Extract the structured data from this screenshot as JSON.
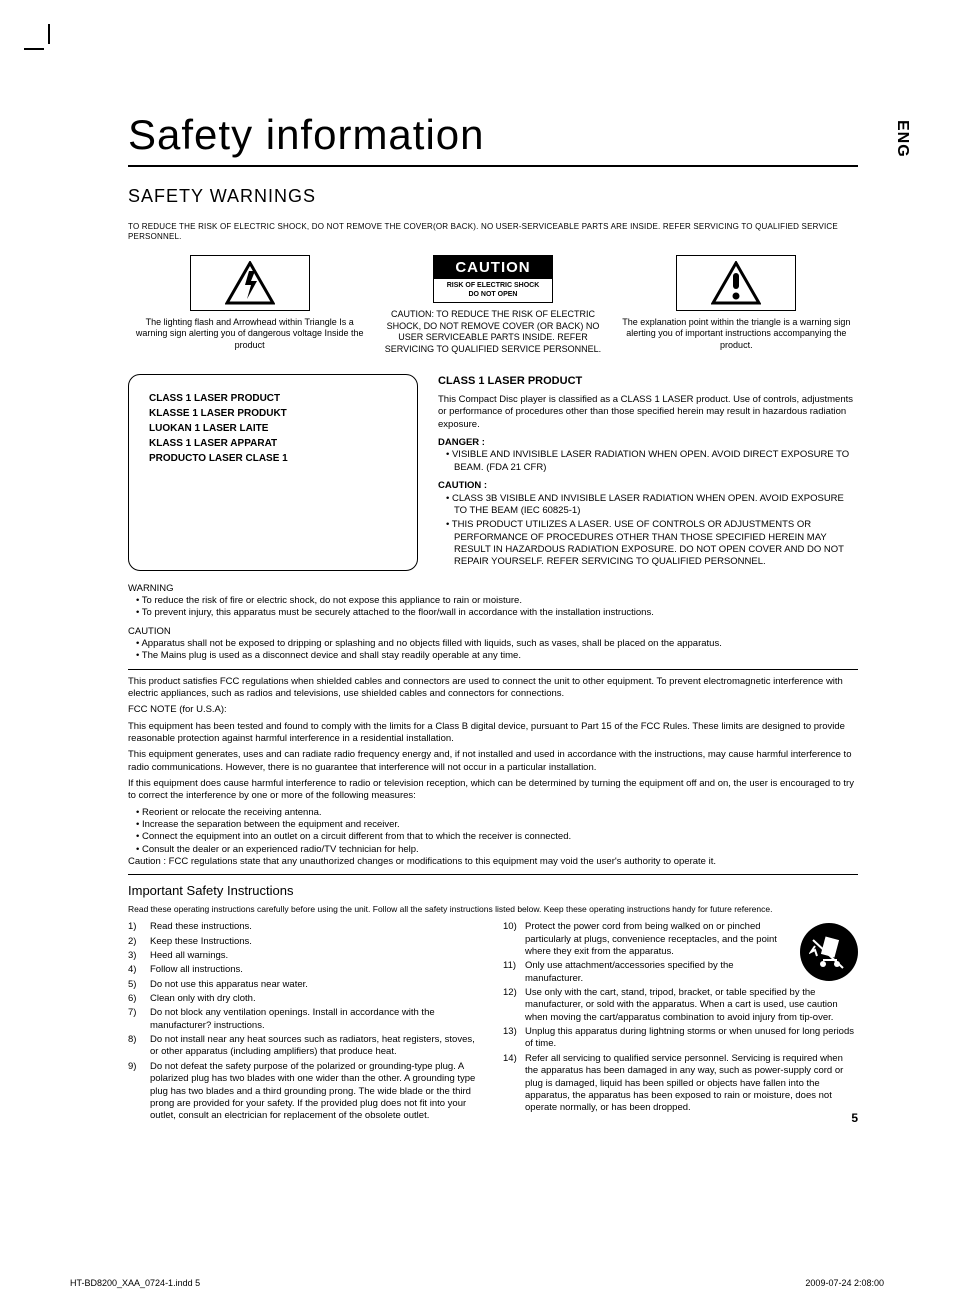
{
  "side_label": "ENG",
  "title": "Safety information",
  "heading": "SAFETY WARNINGS",
  "intro": "TO REDUCE THE RISK OF ELECTRIC SHOCK, DO NOT REMOVE THE COVER(OR BACK). NO USER-SERVICEABLE PARTS ARE INSIDE. REFER SERVICING TO QUALIFIED SERVICE PERSONNEL.",
  "caution_box": {
    "header": "CAUTION",
    "sub1": "RISK OF ELECTRIC SHOCK",
    "sub2": "DO NOT OPEN"
  },
  "col1_text": "The lighting flash and Arrowhead within Triangle Is a warning sign alerting you of dangerous voltage Inside the product",
  "col2_text": "CAUTION: TO REDUCE THE RISK OF ELECTRIC SHOCK, DO NOT REMOVE COVER (OR BACK) NO USER SERVICEABLE PARTS INSIDE. REFER SERVICING TO QUALIFIED SERVICE PERSONNEL.",
  "col3_text": "The explanation point within the triangle is a warning sign alerting you of important instructions accompanying the product.",
  "laser_box": [
    "CLASS 1 LASER PRODUCT",
    "KLASSE 1 LASER PRODUKT",
    "LUOKAN 1 LASER LAITE",
    "KLASS 1 LASER APPARAT",
    "PRODUCTO LASER CLASE 1"
  ],
  "laser_right": {
    "title": "CLASS 1 LASER PRODUCT",
    "desc": "This Compact Disc player is classified as a CLASS 1 LASER product. Use of controls, adjustments or performance of procedures other than those specified herein may result in hazardous radiation exposure.",
    "danger_label": "DANGER :",
    "danger_items": [
      "VISIBLE AND INVISIBLE LASER RADIATION WHEN OPEN. AVOID DIRECT EXPOSURE TO BEAM.    (FDA 21 CFR)"
    ],
    "caution_label": "CAUTION :",
    "caution_items": [
      "CLASS 3B VISIBLE AND INVISIBLE LASER RADIATION WHEN OPEN. AVOID EXPOSURE TO THE BEAM    (IEC 60825-1)",
      "THIS PRODUCT UTILIZES A LASER. USE OF CONTROLS OR ADJUSTMENTS OR PERFORMANCE OF PROCEDURES OTHER THAN THOSE SPECIFIED HEREIN MAY RESULT IN HAZARDOUS RADIATION EXPOSURE. DO NOT OPEN COVER AND DO NOT REPAIR YOURSELF. REFER SERVICING TO QUALIFIED PERSONNEL."
    ]
  },
  "warning_label": "WARNING",
  "warning_items": [
    "To reduce the risk of fire or electric shock, do not expose this appliance to rain or moisture.",
    "To prevent injury, this apparatus must be securely attached to the floor/wall in accordance with the  installation instructions."
  ],
  "caution_label2": "CAUTION",
  "caution_items2": [
    "Apparatus shall not be exposed to dripping or splashing and no objects filled with liquids, such as vases, shall be placed on the apparatus.",
    "The Mains plug is used as a disconnect device and shall stay readily operable at any time."
  ],
  "fcc_para1": "This product satisfies FCC regulations when shielded cables and connectors are used to connect the unit to other equipment. To prevent electromagnetic interference with electric appliances, such as radios and televisions, use shielded cables and connectors for connections.",
  "fcc_note_label": "FCC NOTE (for U.S.A):",
  "fcc_para2": "This equipment has been tested and found to comply with the limits for a Class B digital device, pursuant to Part 15 of the FCC Rules. These limits are designed to provide reasonable protection against harmful interference in a residential installation.",
  "fcc_para3": "This equipment generates, uses and can radiate radio frequency energy and, if not installed and used in accordance with the instructions, may cause harmful interference to radio communications. However, there is no guarantee that interference will not occur in a particular installation.",
  "fcc_para4": "If this equipment does cause harmful interference to radio or television reception, which can be determined by turning the equipment off and on, the user is encouraged to try to correct the interference by one or more of the following measures:",
  "fcc_bullets": [
    "Reorient or relocate the receiving antenna.",
    "Increase the separation between the equipment and receiver.",
    "Connect the equipment into an outlet on a circuit different from that to which the receiver is connected.",
    "Consult the dealer or an experienced radio/TV technician for help."
  ],
  "fcc_caution": "Caution : FCC regulations state that any unauthorized changes or modifications to this equipment may void the user's authority to operate it.",
  "safety_heading": "Important Safety Instructions",
  "safety_intro": "Read these operating instructions carefully before using the unit. Follow all the safety instructions listed below. Keep these operating instructions handy for future reference.",
  "instructions_left": [
    {
      "n": "1)",
      "t": "Read these instructions."
    },
    {
      "n": "2)",
      "t": "Keep these Instructions."
    },
    {
      "n": "3)",
      "t": "Heed all warnings."
    },
    {
      "n": "4)",
      "t": "Follow all instructions."
    },
    {
      "n": "5)",
      "t": "Do not use this apparatus near water."
    },
    {
      "n": "6)",
      "t": "Clean only with dry cloth."
    },
    {
      "n": "7)",
      "t": "Do not block any ventilation openings. Install in accordance with the manufacturer? instructions."
    },
    {
      "n": "8)",
      "t": "Do not install near any heat sources such as radiators, heat registers, stoves, or other apparatus (including amplifiers) that produce heat."
    },
    {
      "n": "9)",
      "t": "Do not defeat the safety purpose of the polarized or grounding-type plug. A polarized plug has two blades with one wider than the other. A grounding type plug has two blades and a third grounding prong. The wide blade or the third prong are provided for your safety. If the provided plug does not fit into your outlet, consult an electrician for replacement of the obsolete outlet."
    }
  ],
  "instructions_right": [
    {
      "n": "10)",
      "t": "Protect the power cord from being walked on or pinched particularly at plugs, convenience receptacles, and the point where they exit from the apparatus."
    },
    {
      "n": "11)",
      "t": "Only use attachment/accessories specified by the manufacturer."
    },
    {
      "n": "12)",
      "t": "Use only with the cart, stand, tripod, bracket, or table specified by the manufacturer, or sold with the apparatus. When a cart is used, use caution when moving the cart/apparatus combination to avoid injury from tip-over."
    },
    {
      "n": "13)",
      "t": "Unplug this apparatus during lightning storms or when unused for long periods of time."
    },
    {
      "n": "14)",
      "t": "Refer all servicing to qualified service personnel. Servicing is required when the apparatus has been damaged in any way, such as power-supply cord or plug is damaged, liquid has been spilled or objects have fallen into the apparatus, the apparatus has been exposed to rain or moisture, does not operate  normally, or has been dropped."
    }
  ],
  "page_number": "5",
  "footer_left": "HT-BD8200_XAA_0724-1.indd   5",
  "footer_right": "2009-07-24   2:08:00"
}
